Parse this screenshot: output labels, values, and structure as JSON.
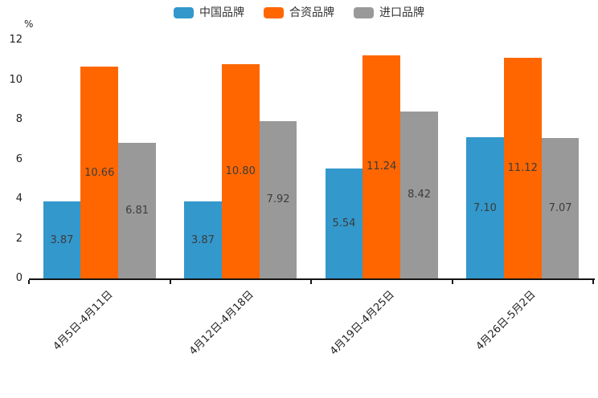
{
  "chart_data": {
    "type": "bar",
    "title": "",
    "unit_label": "%",
    "categories": [
      "4月5日-4月11日",
      "4月12日-4月18日",
      "4月19日-4月25日",
      "4月26日-5月2日"
    ],
    "series": [
      {
        "name": "中国品牌",
        "color": "#3398cc",
        "values": [
          3.87,
          3.87,
          5.54,
          7.1
        ]
      },
      {
        "name": "合资品牌",
        "color": "#ff6600",
        "values": [
          10.66,
          10.8,
          11.24,
          11.12
        ]
      },
      {
        "name": "进口品牌",
        "color": "#999999",
        "values": [
          6.81,
          7.92,
          8.42,
          7.07
        ]
      }
    ],
    "ylim": [
      0,
      12
    ],
    "yticks": [
      0,
      2,
      4,
      6,
      8,
      10,
      12
    ],
    "legend_position": "top-center",
    "grid": false,
    "value_labels": "inside-center",
    "value_label_decimals": 2,
    "axis_color": "#141414",
    "label_color": "#3c3c3c"
  }
}
